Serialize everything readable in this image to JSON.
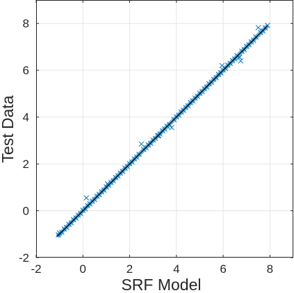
{
  "chart_data": {
    "type": "scatter",
    "title": "",
    "xlabel": "SRF Model",
    "ylabel": "Test Data",
    "xlim": [
      -2,
      9
    ],
    "ylim": [
      -2,
      9
    ],
    "xticks": [
      "-2",
      "0",
      "2",
      "4",
      "6",
      "8"
    ],
    "yticks": [
      "-2",
      "0",
      "2",
      "4",
      "6",
      "8"
    ],
    "grid": true,
    "marker": "x",
    "marker_color": "#0072BD",
    "fit_line": {
      "from": [
        -1.1,
        -1.1
      ],
      "to": [
        7.9,
        7.9
      ],
      "color": "#000000"
    },
    "series": [
      {
        "values": [
          [
            -1.05,
            -1.03
          ],
          [
            -1.0,
            -0.95
          ],
          [
            -0.9,
            -0.92
          ],
          [
            -0.8,
            -0.78
          ],
          [
            -0.7,
            -0.71
          ],
          [
            -0.6,
            -0.58
          ],
          [
            -0.5,
            -0.52
          ],
          [
            -0.4,
            -0.38
          ],
          [
            -0.3,
            -0.31
          ],
          [
            -0.2,
            -0.19
          ],
          [
            -0.1,
            -0.12
          ],
          [
            0.0,
            0.02
          ],
          [
            0.1,
            0.08
          ],
          [
            0.2,
            0.22
          ],
          [
            0.3,
            0.29
          ],
          [
            0.4,
            0.41
          ],
          [
            0.5,
            0.48
          ],
          [
            0.6,
            0.62
          ],
          [
            0.7,
            0.69
          ],
          [
            0.8,
            0.81
          ],
          [
            0.9,
            0.88
          ],
          [
            1.0,
            1.02
          ],
          [
            1.1,
            1.09
          ],
          [
            1.2,
            1.21
          ],
          [
            1.3,
            1.28
          ],
          [
            1.4,
            1.42
          ],
          [
            1.5,
            1.49
          ],
          [
            1.6,
            1.61
          ],
          [
            1.7,
            1.68
          ],
          [
            1.8,
            1.82
          ],
          [
            1.9,
            1.89
          ],
          [
            2.0,
            2.01
          ],
          [
            2.1,
            2.08
          ],
          [
            2.2,
            2.22
          ],
          [
            2.3,
            2.29
          ],
          [
            2.4,
            2.41
          ],
          [
            2.5,
            2.85
          ],
          [
            2.6,
            2.62
          ],
          [
            2.7,
            2.69
          ],
          [
            2.8,
            2.81
          ],
          [
            2.9,
            2.88
          ],
          [
            3.0,
            3.02
          ],
          [
            3.1,
            3.09
          ],
          [
            3.2,
            3.21
          ],
          [
            3.3,
            3.28
          ],
          [
            3.4,
            3.42
          ],
          [
            3.5,
            3.49
          ],
          [
            3.6,
            3.61
          ],
          [
            3.7,
            3.68
          ],
          [
            3.8,
            3.55
          ],
          [
            3.9,
            3.89
          ],
          [
            4.0,
            4.01
          ],
          [
            4.1,
            4.08
          ],
          [
            4.2,
            4.22
          ],
          [
            4.3,
            4.29
          ],
          [
            4.4,
            4.41
          ],
          [
            4.5,
            4.48
          ],
          [
            4.6,
            4.62
          ],
          [
            4.7,
            4.69
          ],
          [
            4.8,
            4.81
          ],
          [
            4.9,
            4.88
          ],
          [
            5.0,
            5.02
          ],
          [
            5.1,
            5.09
          ],
          [
            5.2,
            5.21
          ],
          [
            5.3,
            5.28
          ],
          [
            5.4,
            5.42
          ],
          [
            5.5,
            5.49
          ],
          [
            5.6,
            5.61
          ],
          [
            5.7,
            5.68
          ],
          [
            5.8,
            5.82
          ],
          [
            5.9,
            5.89
          ],
          [
            6.0,
            6.01
          ],
          [
            6.1,
            6.08
          ],
          [
            6.2,
            6.22
          ],
          [
            6.3,
            6.29
          ],
          [
            6.4,
            6.41
          ],
          [
            6.5,
            6.48
          ],
          [
            6.6,
            6.62
          ],
          [
            6.7,
            6.55
          ],
          [
            6.75,
            6.4
          ],
          [
            6.8,
            6.81
          ],
          [
            6.9,
            6.88
          ],
          [
            7.0,
            7.02
          ],
          [
            7.1,
            7.09
          ],
          [
            7.2,
            7.21
          ],
          [
            7.3,
            7.28
          ],
          [
            7.4,
            7.42
          ],
          [
            7.5,
            7.82
          ],
          [
            7.6,
            7.61
          ],
          [
            7.7,
            7.68
          ],
          [
            7.8,
            7.81
          ],
          [
            7.9,
            7.92
          ],
          [
            0.15,
            0.55
          ],
          [
            1.05,
            1.15
          ],
          [
            3.25,
            3.2
          ],
          [
            5.95,
            6.2
          ]
        ]
      }
    ]
  }
}
